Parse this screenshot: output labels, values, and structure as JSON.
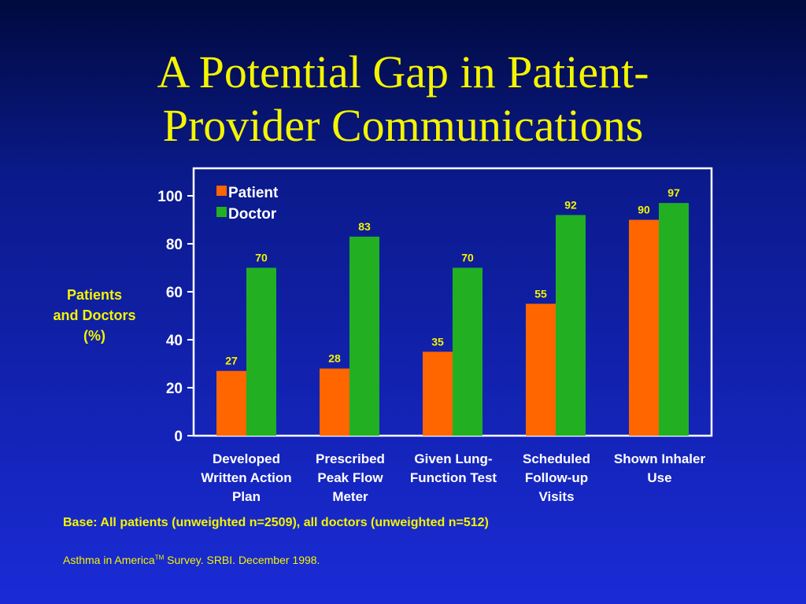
{
  "slide": {
    "title_line1": "A Potential Gap in Patient-",
    "title_line2": "Provider Communications",
    "ylabel_line1": "Patients",
    "ylabel_line2": "and Doctors",
    "ylabel_line3": "(%)",
    "base_note": "Base: All patients (unweighted n=2509), all doctors (unweighted n=512)",
    "source_prefix": "Asthma in America",
    "source_tm": "TM",
    "source_suffix": " Survey. SRBI. December 1998."
  },
  "chart_data": {
    "type": "bar",
    "categories": [
      [
        "Developed",
        "Written Action",
        "Plan"
      ],
      [
        "Prescribed",
        "Peak Flow",
        "Meter"
      ],
      [
        "Given Lung-",
        "Function Test"
      ],
      [
        "Scheduled",
        "Follow-up",
        "Visits"
      ],
      [
        "Shown Inhaler",
        "Use"
      ]
    ],
    "series": [
      {
        "name": "Patient",
        "color": "#ff6600",
        "values": [
          27,
          28,
          35,
          55,
          90
        ]
      },
      {
        "name": "Doctor",
        "color": "#22b022",
        "values": [
          70,
          83,
          70,
          92,
          97
        ]
      }
    ],
    "yticks": [
      "0",
      "20",
      "40",
      "60",
      "80",
      "100"
    ],
    "ylim": [
      0,
      100
    ],
    "ylabel": "Patients and Doctors (%)",
    "legend_position": "top-left",
    "grid": false
  }
}
